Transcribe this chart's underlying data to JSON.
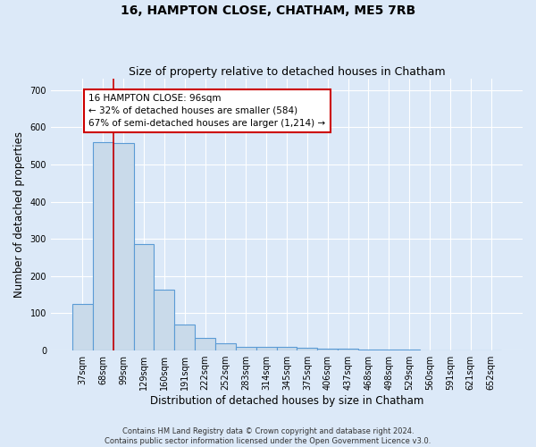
{
  "title": "16, HAMPTON CLOSE, CHATHAM, ME5 7RB",
  "subtitle": "Size of property relative to detached houses in Chatham",
  "xlabel": "Distribution of detached houses by size in Chatham",
  "ylabel": "Number of detached properties",
  "footnote1": "Contains HM Land Registry data © Crown copyright and database right 2024.",
  "footnote2": "Contains public sector information licensed under the Open Government Licence v3.0.",
  "bar_labels": [
    "37sqm",
    "68sqm",
    "99sqm",
    "129sqm",
    "160sqm",
    "191sqm",
    "222sqm",
    "252sqm",
    "283sqm",
    "314sqm",
    "345sqm",
    "375sqm",
    "406sqm",
    "437sqm",
    "468sqm",
    "498sqm",
    "529sqm",
    "560sqm",
    "591sqm",
    "621sqm",
    "652sqm"
  ],
  "bar_values": [
    126,
    560,
    557,
    285,
    163,
    70,
    33,
    20,
    10,
    10,
    10,
    8,
    5,
    5,
    3,
    2,
    2,
    1,
    1,
    1,
    1
  ],
  "bar_color": "#c9daea",
  "bar_edge_color": "#5b9bd5",
  "bar_linewidth": 0.8,
  "vline_color": "#cc0000",
  "vline_x_index": 2,
  "annotation_text": "16 HAMPTON CLOSE: 96sqm\n← 32% of detached houses are smaller (584)\n67% of semi-detached houses are larger (1,214) →",
  "annotation_box_color": "#ffffff",
  "annotation_box_edge": "#cc0000",
  "ylim": [
    0,
    730
  ],
  "yticks": [
    0,
    100,
    200,
    300,
    400,
    500,
    600,
    700
  ],
  "bg_color": "#dce9f8",
  "grid_color": "#ffffff",
  "title_fontsize": 10,
  "subtitle_fontsize": 9,
  "axis_label_fontsize": 8.5,
  "tick_fontsize": 7,
  "footnote_fontsize": 6,
  "annotation_fontsize": 7.5
}
